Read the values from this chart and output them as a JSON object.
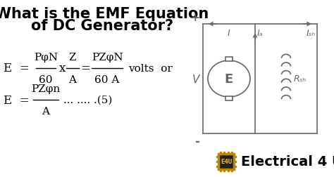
{
  "bg_color": "#ffffff",
  "title_line1": "What is the EMF Equation",
  "title_line2": "of DC Generator?",
  "title_fontsize": 15,
  "title_color": "#000000",
  "formula1_num1": "PφN",
  "formula1_den1": "60",
  "formula1_x": "x",
  "formula1_num2": "Z",
  "formula1_den2": "A",
  "formula1_num3": "PZφN",
  "formula1_den3": "60 A",
  "formula1_suffix": "volts  or",
  "formula2_num": "PZφn",
  "formula2_den": "A",
  "formula2_suffix": "... .... .(5)",
  "formula_fontsize": 11,
  "formula_color": "#000000",
  "circuit_color": "#666666",
  "label_I": "I",
  "label_Ia": "Iₐ",
  "label_Ish": "Iₛₕ",
  "label_V": "V",
  "label_E": "E",
  "label_Rsh": "Rₛₕ",
  "brand_text": "Electrical 4 U",
  "brand_color": "#000000",
  "brand_fontsize": 14,
  "chip_text": "E4U",
  "plus_label": "+",
  "minus_label": "-"
}
